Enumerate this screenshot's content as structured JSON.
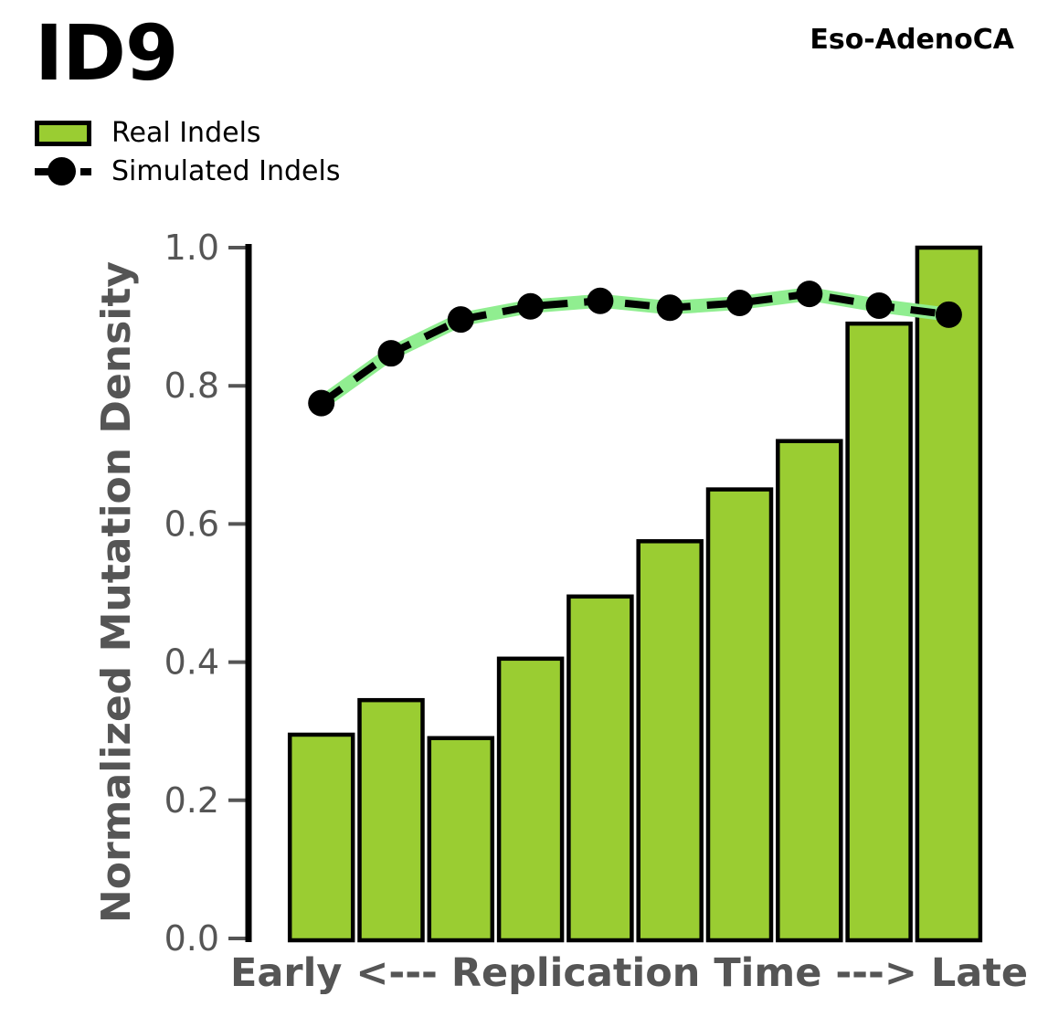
{
  "header": {
    "title": "ID9",
    "cohort": "Eso-AdenoCA"
  },
  "legend": {
    "items": [
      {
        "label": "Real Indels",
        "marker": "green-filled-patch"
      },
      {
        "label": "Simulated Indels",
        "marker": "black-dot-on-dashed-line"
      }
    ]
  },
  "chart_data": {
    "type": "bar",
    "title": "ID9",
    "annotation": "Eso-AdenoCA",
    "xlabel": "Early <--- Replication Time ---> Late",
    "ylabel": "Normalized Mutation Density",
    "n_bins": 10,
    "ylim": [
      0.0,
      1.0
    ],
    "yticks": [
      0.0,
      0.2,
      0.4,
      0.6,
      0.8,
      1.0
    ],
    "ytick_labels": [
      "0.0",
      "0.2",
      "0.4",
      "0.6",
      "0.8",
      "1.0"
    ],
    "grid": false,
    "legend_position": "upper-left-above-axes",
    "series": [
      {
        "name": "Real Indels",
        "type": "bar",
        "color": "#9ACD32",
        "edge_color": "#000000",
        "values": [
          0.295,
          0.345,
          0.29,
          0.405,
          0.495,
          0.575,
          0.65,
          0.72,
          0.89,
          1.0
        ]
      },
      {
        "name": "Simulated Indels",
        "type": "line-dashed-with-markers",
        "color": "#000000",
        "underlay_color": "#90EE90",
        "values": [
          0.775,
          0.847,
          0.896,
          0.915,
          0.923,
          0.913,
          0.92,
          0.933,
          0.916,
          0.903
        ]
      }
    ]
  },
  "colors": {
    "bar_fill": "#9ACD32",
    "line_underlay": "#90EE90",
    "line_and_markers": "#000000",
    "axis_text": "#555555",
    "spine": "#000000",
    "background": "#ffffff"
  }
}
